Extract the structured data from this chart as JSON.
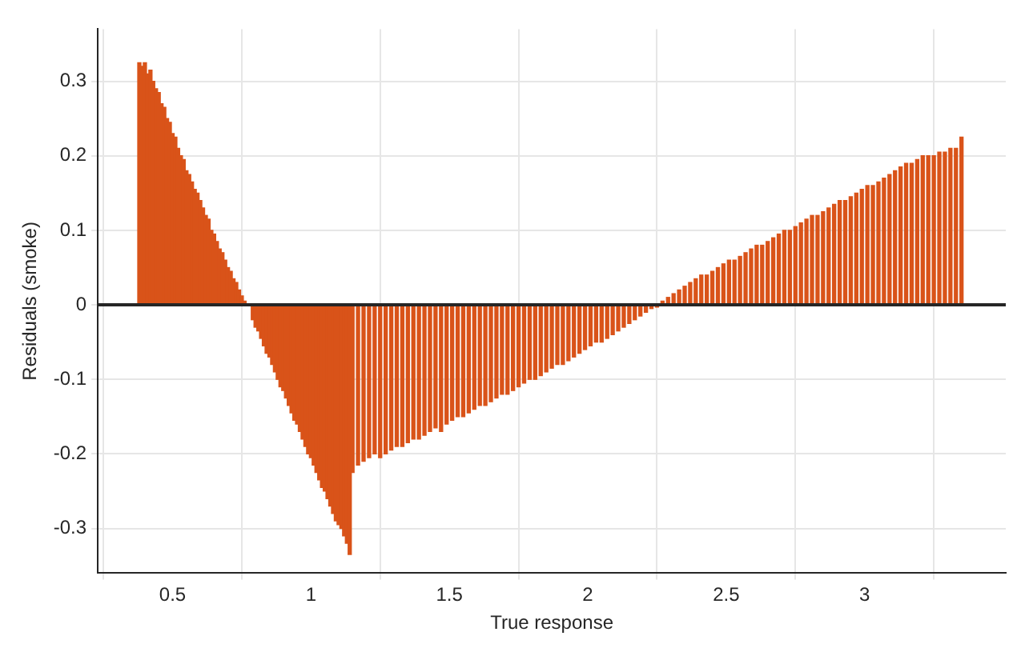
{
  "chart_data": {
    "type": "bar",
    "xlabel": "True response",
    "ylabel": "Residuals (smoke)",
    "xlim": [
      0.23,
      3.51
    ],
    "ylim": [
      -0.36,
      0.37
    ],
    "xticks": [
      0.5,
      1,
      1.5,
      2,
      2.5,
      3
    ],
    "yticks": [
      -0.3,
      -0.2,
      -0.1,
      0,
      0.1,
      0.2,
      0.3
    ],
    "grid": true,
    "ref_lines": [
      {
        "axis": "y",
        "value": 0,
        "color": "#262626"
      }
    ],
    "series": [
      {
        "color": "#d95319",
        "x": [
          0.38,
          0.39,
          0.4,
          0.41,
          0.42,
          0.43,
          0.44,
          0.45,
          0.46,
          0.47,
          0.48,
          0.49,
          0.5,
          0.51,
          0.52,
          0.53,
          0.54,
          0.55,
          0.56,
          0.57,
          0.58,
          0.59,
          0.6,
          0.61,
          0.62,
          0.63,
          0.64,
          0.65,
          0.66,
          0.67,
          0.68,
          0.69,
          0.7,
          0.71,
          0.72,
          0.73,
          0.74,
          0.75,
          0.76,
          0.77,
          0.78,
          0.79,
          0.8,
          0.81,
          0.82,
          0.83,
          0.84,
          0.85,
          0.86,
          0.87,
          0.88,
          0.89,
          0.9,
          0.91,
          0.92,
          0.93,
          0.94,
          0.95,
          0.96,
          0.97,
          0.98,
          0.99,
          1,
          1.01,
          1.02,
          1.03,
          1.04,
          1.05,
          1.06,
          1.07,
          1.08,
          1.09,
          1.1,
          1.11,
          1.12,
          1.13,
          1.14,
          1.15,
          1.17,
          1.19,
          1.21,
          1.23,
          1.25,
          1.27,
          1.29,
          1.31,
          1.33,
          1.35,
          1.37,
          1.39,
          1.41,
          1.43,
          1.45,
          1.47,
          1.49,
          1.51,
          1.53,
          1.55,
          1.57,
          1.59,
          1.61,
          1.63,
          1.65,
          1.67,
          1.69,
          1.71,
          1.73,
          1.75,
          1.77,
          1.79,
          1.81,
          1.83,
          1.85,
          1.87,
          1.89,
          1.91,
          1.93,
          1.95,
          1.97,
          1.99,
          2.01,
          2.03,
          2.05,
          2.07,
          2.09,
          2.11,
          2.13,
          2.15,
          2.17,
          2.19,
          2.21,
          2.23,
          2.25,
          2.27,
          2.29,
          2.31,
          2.33,
          2.35,
          2.37,
          2.39,
          2.41,
          2.43,
          2.45,
          2.47,
          2.49,
          2.51,
          2.53,
          2.55,
          2.57,
          2.59,
          2.61,
          2.63,
          2.65,
          2.67,
          2.69,
          2.71,
          2.73,
          2.75,
          2.77,
          2.79,
          2.81,
          2.83,
          2.85,
          2.87,
          2.89,
          2.91,
          2.93,
          2.95,
          2.97,
          2.99,
          3.01,
          3.03,
          3.05,
          3.07,
          3.09,
          3.11,
          3.13,
          3.15,
          3.17,
          3.19,
          3.21,
          3.23,
          3.25,
          3.27,
          3.29,
          3.31,
          3.33,
          3.35
        ],
        "values": [
          0.325,
          0.32,
          0.325,
          0.31,
          0.315,
          0.3,
          0.29,
          0.285,
          0.27,
          0.265,
          0.25,
          0.245,
          0.23,
          0.225,
          0.21,
          0.2,
          0.195,
          0.18,
          0.175,
          0.165,
          0.155,
          0.15,
          0.14,
          0.13,
          0.12,
          0.115,
          0.1,
          0.095,
          0.085,
          0.075,
          0.07,
          0.06,
          0.05,
          0.045,
          0.035,
          0.03,
          0.02,
          0.012,
          0.005,
          null,
          null,
          -0.02,
          -0.03,
          -0.035,
          -0.045,
          -0.055,
          -0.065,
          -0.07,
          -0.08,
          -0.09,
          -0.1,
          -0.11,
          -0.115,
          -0.125,
          -0.135,
          -0.145,
          -0.155,
          -0.16,
          -0.17,
          -0.18,
          -0.19,
          -0.2,
          -0.205,
          -0.215,
          -0.225,
          -0.235,
          -0.245,
          -0.25,
          -0.26,
          -0.27,
          -0.28,
          -0.29,
          -0.295,
          -0.3,
          -0.31,
          -0.32,
          -0.335,
          -0.225,
          -0.215,
          -0.21,
          -0.205,
          -0.2,
          -0.205,
          -0.2,
          -0.195,
          -0.19,
          -0.19,
          -0.185,
          -0.18,
          -0.18,
          -0.175,
          -0.17,
          -0.165,
          -0.17,
          -0.16,
          -0.155,
          -0.15,
          -0.15,
          -0.145,
          -0.14,
          -0.135,
          -0.135,
          -0.13,
          -0.125,
          -0.12,
          -0.12,
          -0.115,
          -0.11,
          -0.105,
          -0.1,
          -0.1,
          -0.095,
          -0.09,
          -0.085,
          -0.08,
          -0.08,
          -0.075,
          -0.07,
          -0.065,
          -0.06,
          -0.055,
          -0.05,
          -0.05,
          -0.045,
          -0.04,
          -0.035,
          -0.03,
          -0.025,
          -0.02,
          -0.015,
          -0.01,
          -0.005,
          -0.003,
          0.005,
          0.01,
          0.015,
          0.02,
          0.025,
          0.03,
          0.035,
          0.04,
          0.04,
          0.045,
          0.05,
          0.055,
          0.06,
          0.06,
          0.065,
          0.07,
          0.075,
          0.08,
          0.08,
          0.085,
          0.09,
          0.095,
          0.1,
          0.1,
          0.105,
          0.11,
          0.115,
          0.12,
          0.12,
          0.125,
          0.13,
          0.135,
          0.14,
          0.14,
          0.145,
          0.15,
          0.155,
          0.16,
          0.16,
          0.165,
          0.17,
          0.175,
          0.18,
          0.185,
          0.19,
          0.19,
          0.195,
          0.2,
          0.2,
          0.2,
          0.205,
          0.205,
          0.21,
          0.21,
          0.225
        ]
      }
    ]
  }
}
